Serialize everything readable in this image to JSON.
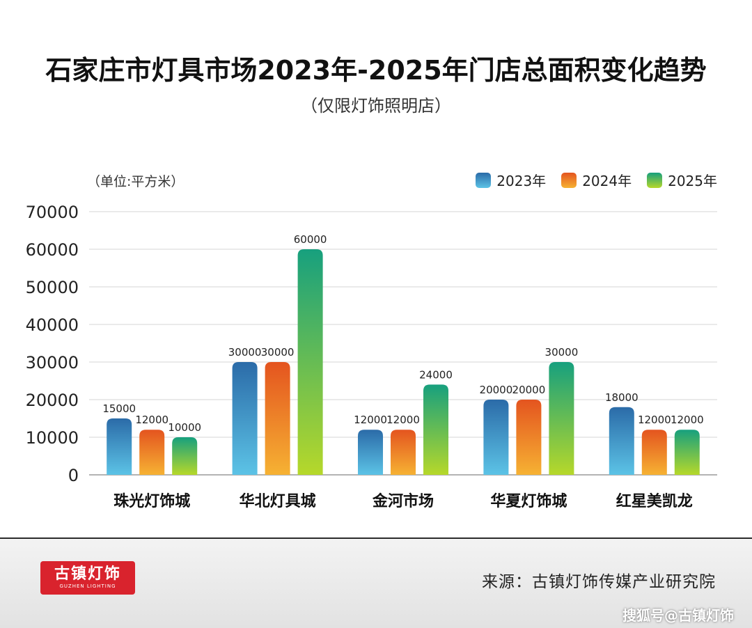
{
  "chart_data": {
    "type": "bar",
    "title": "石家庄市灯具市场2023年-2025年门店总面积变化趋势",
    "subtitle": "（仅限灯饰照明店）",
    "unit_label": "（单位:平方米）",
    "categories": [
      "珠光灯饰城",
      "华北灯具城",
      "金河市场",
      "华夏灯饰城",
      "红星美凯龙"
    ],
    "series": [
      {
        "name": "2023年",
        "values": [
          15000,
          30000,
          12000,
          20000,
          18000
        ]
      },
      {
        "name": "2024年",
        "values": [
          12000,
          30000,
          12000,
          20000,
          12000
        ]
      },
      {
        "name": "2025年",
        "values": [
          10000,
          60000,
          24000,
          30000,
          12000
        ]
      }
    ],
    "ylim": [
      0,
      70000
    ],
    "yticks": [
      0,
      10000,
      20000,
      30000,
      40000,
      50000,
      60000,
      70000
    ],
    "grid": true,
    "legend_position": "top-right",
    "colors": {
      "2023年": [
        "#2b6ba8",
        "#5cc3e6"
      ],
      "2024年": [
        "#e4541f",
        "#f6b233"
      ],
      "2025年": [
        "#17a07e",
        "#b6d82a"
      ]
    }
  },
  "footer": {
    "source": "来源：古镇灯饰传媒产业研究院",
    "logo_text": "古镇灯饰",
    "logo_subtext": "GUZHEN LIGHTING",
    "watermark": "搜狐号@古镇灯饰"
  }
}
